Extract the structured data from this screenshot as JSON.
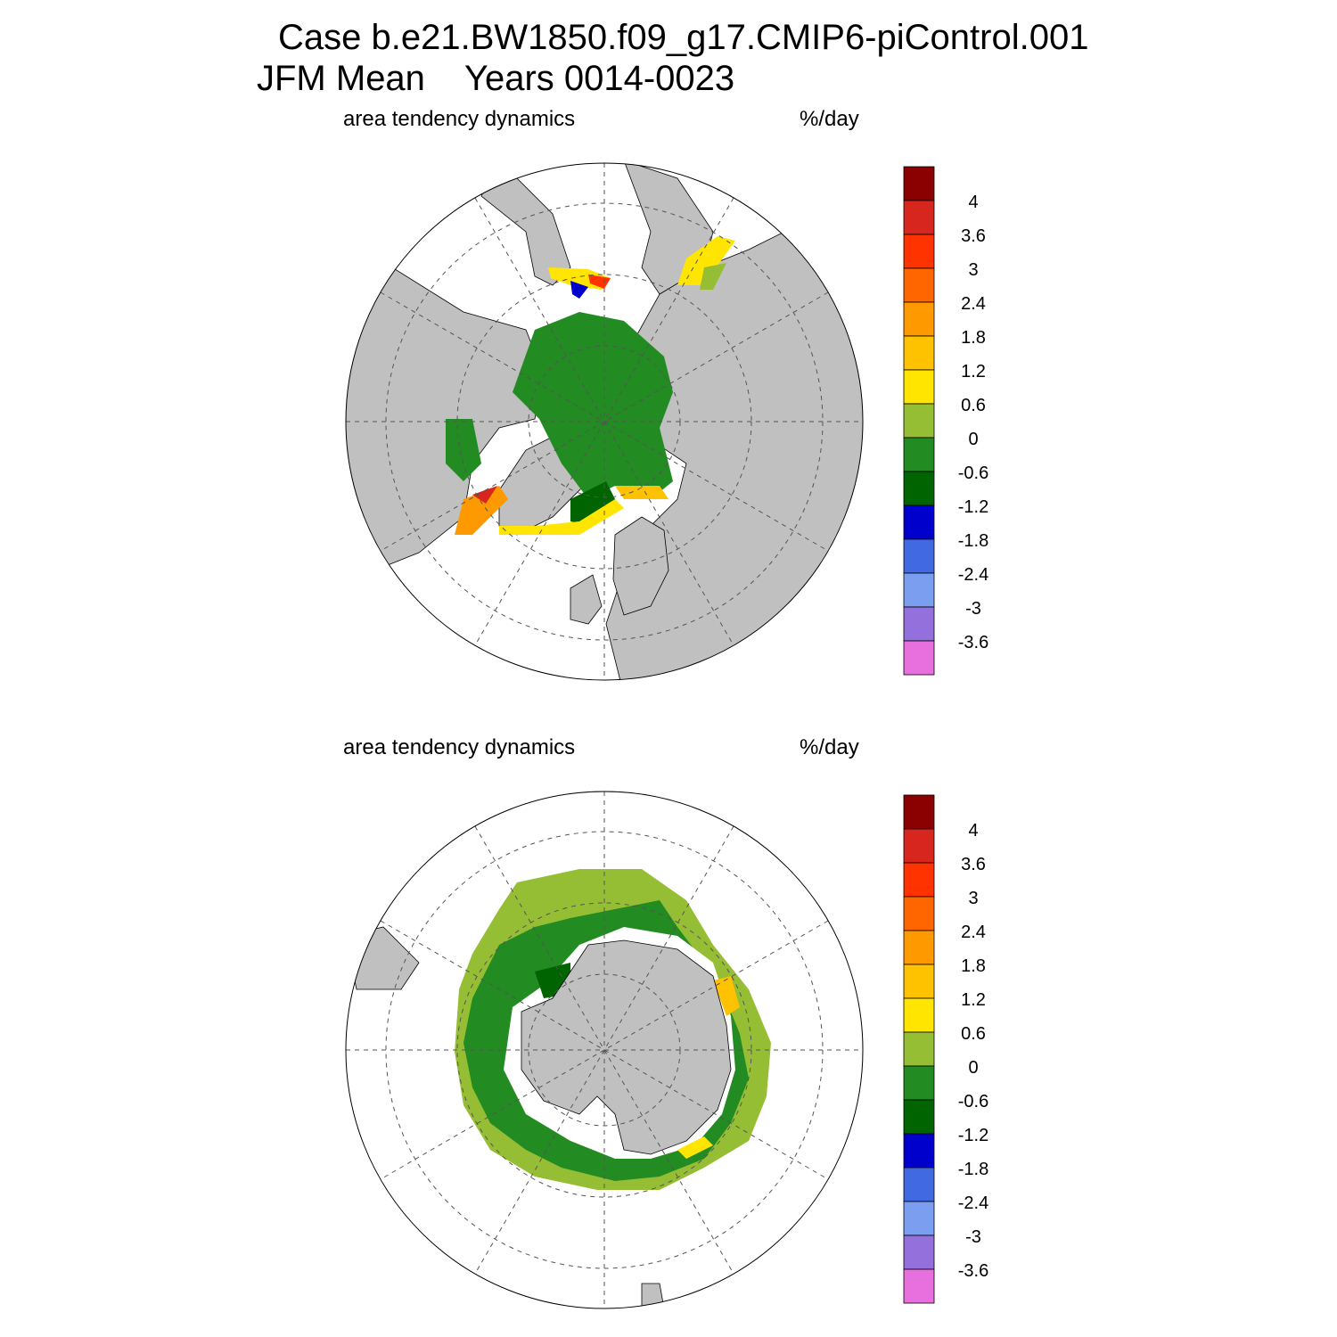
{
  "title": {
    "line1": "Case b.e21.BW1850.f09_g17.CMIP6-piControl.001",
    "season": "JFM Mean",
    "years": "Years 0014-0023"
  },
  "panels": [
    {
      "id": "north",
      "variable": "area tendency dynamics",
      "units": "%/day"
    },
    {
      "id": "south",
      "variable": "area tendency dynamics",
      "units": "%/day"
    }
  ],
  "colorbar": {
    "labels": [
      "4",
      "3.6",
      "3",
      "2.4",
      "1.8",
      "1.2",
      "0.6",
      "0",
      "-0.6",
      "-1.2",
      "-1.8",
      "-2.4",
      "-3",
      "-3.6"
    ],
    "colors": [
      "#8b0000",
      "#d7261e",
      "#ff3300",
      "#ff6600",
      "#ff9900",
      "#ffc200",
      "#ffe500",
      "#96be34",
      "#228b22",
      "#006400",
      "#0000cd",
      "#4169e1",
      "#7b9ef0",
      "#9370db",
      "#e86fde"
    ]
  },
  "colors": {
    "land": "#c0c0c0",
    "frame": "#000000",
    "grid": "#555555"
  },
  "chart_data": {
    "type": "polar-stereographic map",
    "field": "area tendency dynamics",
    "units": "%/day",
    "season": "JFM",
    "hemispheres": [
      "north",
      "south"
    ]
  }
}
